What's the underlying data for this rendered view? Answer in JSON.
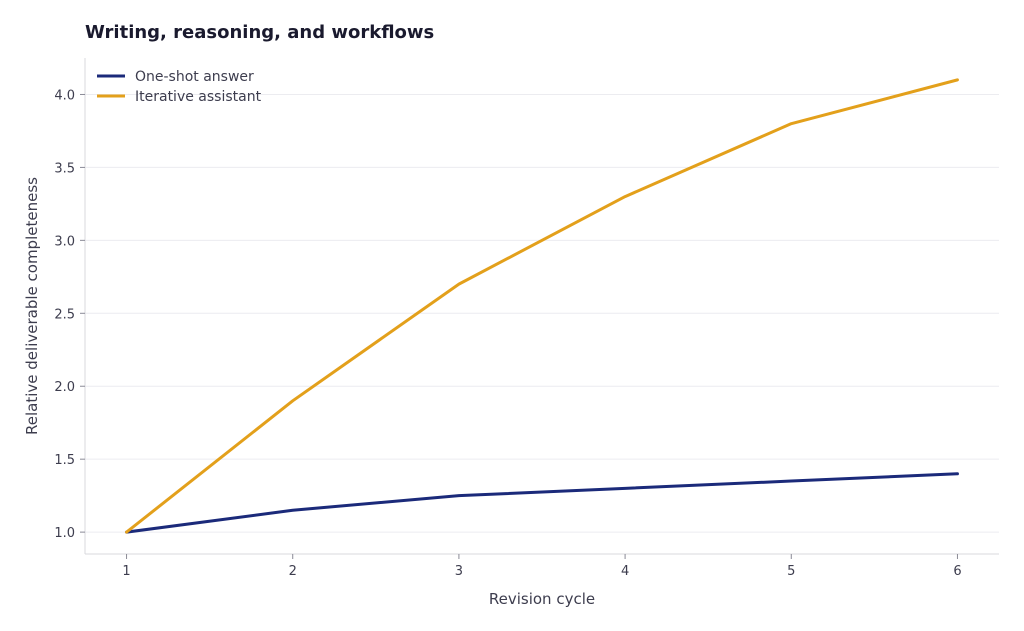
{
  "chart_data": {
    "type": "line",
    "title": "Writing, reasoning, and workflows",
    "xlabel": "Revision cycle",
    "ylabel": "Relative deliverable completeness",
    "x": [
      1,
      2,
      3,
      4,
      5,
      6
    ],
    "xticks": [
      "1",
      "2",
      "3",
      "4",
      "5",
      "6"
    ],
    "yticks": [
      "1.0",
      "1.5",
      "2.0",
      "2.5",
      "3.0",
      "3.5",
      "4.0"
    ],
    "xlim": [
      0.75,
      6.25
    ],
    "ylim": [
      0.85,
      4.25
    ],
    "grid": "horizontal",
    "legend_position": "top-left",
    "series": [
      {
        "name": "One-shot answer",
        "color": "#1b2a7a",
        "values": [
          1.0,
          1.15,
          1.25,
          1.3,
          1.35,
          1.4
        ]
      },
      {
        "name": "Iterative assistant",
        "color": "#e3a01b",
        "values": [
          1.0,
          1.9,
          2.7,
          3.3,
          3.8,
          4.1
        ]
      }
    ]
  }
}
